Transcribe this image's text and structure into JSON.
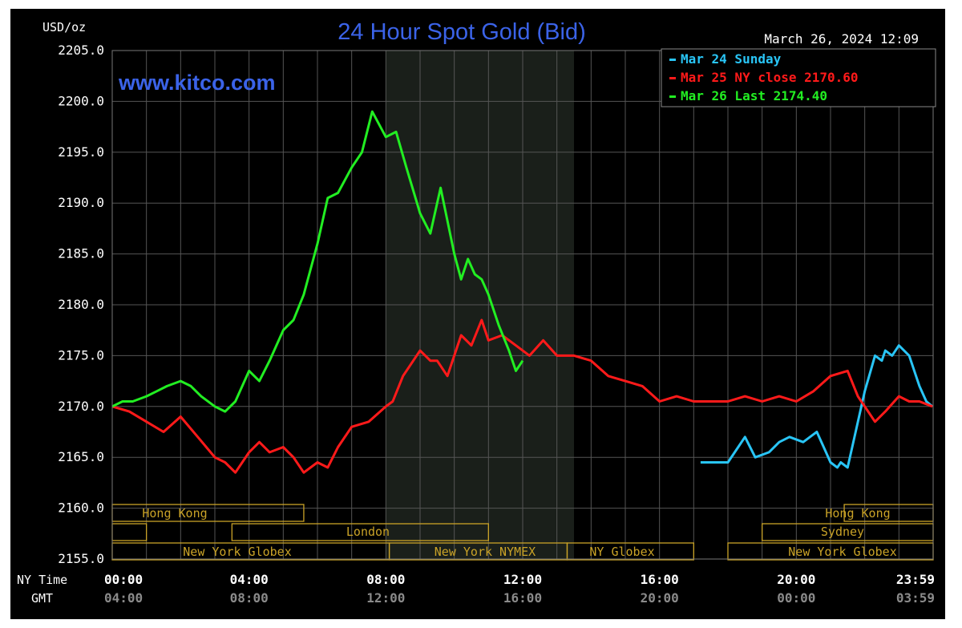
{
  "header": {
    "unit": "USD/oz",
    "title": "24 Hour Spot Gold (Bid)",
    "timestamp": "March 26, 2024 12:09",
    "watermark": "www.kitco.com"
  },
  "legend": [
    {
      "label": "Mar 24 Sunday",
      "color": "#29c5f6"
    },
    {
      "label": "Mar 25 NY close 2170.60",
      "color": "#ff1a1a"
    },
    {
      "label": "Mar 26 Last 2174.40",
      "color": "#22ee22"
    }
  ],
  "colors": {
    "background": "#000000",
    "grid": "#555555",
    "axis_text": "#ffffff",
    "title": "#3b63e8",
    "session_gold": "#c9a227",
    "gmt_text": "#8a8a8a",
    "shaded_region": "#1a1f1a"
  },
  "sessions": {
    "hong_kong_1": "Hong Kong",
    "london": "London",
    "new_york_globex_1": "New York Globex",
    "new_york_nymex": "New York NYMEX",
    "ny_globex": "NY Globex",
    "hong_kong_2": "Hong Kong",
    "sydney": "Sydney",
    "new_york_globex_2": "New York Globex"
  },
  "axis_labels": {
    "ny_time": "NY Time",
    "gmt": "GMT"
  },
  "chart_data": {
    "type": "line",
    "title": "24 Hour Spot Gold (Bid)",
    "ylabel": "USD/oz",
    "ylim": [
      2155.0,
      2205.0
    ],
    "xlim": [
      0,
      24
    ],
    "y_ticks": [
      "2155.0",
      "2160.0",
      "2165.0",
      "2170.0",
      "2175.0",
      "2180.0",
      "2185.0",
      "2190.0",
      "2195.0",
      "2200.0",
      "2205.0"
    ],
    "x_ticks_ny": [
      "00:00",
      "04:00",
      "08:00",
      "12:00",
      "16:00",
      "20:00",
      "23:59"
    ],
    "x_ticks_gmt": [
      "04:00",
      "08:00",
      "12:00",
      "16:00",
      "20:00",
      "00:00",
      "03:59"
    ],
    "grid": true,
    "legend_position": "top-right",
    "nymex_hours": [
      8.0,
      13.5
    ],
    "series": [
      {
        "name": "Mar 24 Sunday",
        "color": "#29c5f6",
        "x": [
          17.2,
          18.0,
          18.3,
          18.5,
          18.8,
          19.2,
          19.5,
          19.8,
          20.2,
          20.4,
          20.6,
          20.8,
          21.0,
          21.2,
          21.3,
          21.5,
          21.7,
          22.0,
          22.3,
          22.5,
          22.6,
          22.8,
          23.0,
          23.3,
          23.6,
          23.8,
          23.98
        ],
        "y": [
          2164.5,
          2164.5,
          2166.0,
          2167.0,
          2165.0,
          2165.5,
          2166.5,
          2167.0,
          2166.5,
          2167.0,
          2167.5,
          2166.0,
          2164.5,
          2164.0,
          2164.5,
          2164.0,
          2167.0,
          2171.5,
          2175.0,
          2174.5,
          2175.5,
          2175.0,
          2176.0,
          2175.0,
          2172.0,
          2170.5,
          2170.0
        ]
      },
      {
        "name": "Mar 25 NY close 2170.60",
        "color": "#ff1a1a",
        "x": [
          0.0,
          0.5,
          1.0,
          1.5,
          2.0,
          2.5,
          3.0,
          3.3,
          3.6,
          4.0,
          4.3,
          4.6,
          5.0,
          5.3,
          5.6,
          6.0,
          6.3,
          6.6,
          7.0,
          7.5,
          8.0,
          8.2,
          8.5,
          9.0,
          9.3,
          9.5,
          9.8,
          10.2,
          10.5,
          10.8,
          11.0,
          11.4,
          11.8,
          12.2,
          12.6,
          13.0,
          13.5,
          14.0,
          14.5,
          15.0,
          15.5,
          16.0,
          16.5,
          17.0,
          17.5,
          18.0,
          18.5,
          19.0,
          19.5,
          20.0,
          20.5,
          21.0,
          21.5,
          21.8,
          22.0,
          22.3,
          22.6,
          23.0,
          23.3,
          23.6,
          23.98
        ],
        "y": [
          2170.0,
          2169.5,
          2168.5,
          2167.5,
          2169.0,
          2167.0,
          2165.0,
          2164.5,
          2163.5,
          2165.5,
          2166.5,
          2165.5,
          2166.0,
          2165.0,
          2163.5,
          2164.5,
          2164.0,
          2166.0,
          2168.0,
          2168.5,
          2170.0,
          2170.5,
          2173.0,
          2175.5,
          2174.5,
          2174.5,
          2173.0,
          2177.0,
          2176.0,
          2178.5,
          2176.5,
          2177.0,
          2176.0,
          2175.0,
          2176.5,
          2175.0,
          2175.0,
          2174.5,
          2173.0,
          2172.5,
          2172.0,
          2170.5,
          2171.0,
          2170.5,
          2170.5,
          2170.5,
          2171.0,
          2170.5,
          2171.0,
          2170.5,
          2171.5,
          2173.0,
          2173.5,
          2171.0,
          2170.0,
          2168.5,
          2169.5,
          2171.0,
          2170.5,
          2170.5,
          2170.0
        ]
      },
      {
        "name": "Mar 26 Last 2174.40",
        "color": "#22ee22",
        "x": [
          0.0,
          0.3,
          0.6,
          1.0,
          1.3,
          1.6,
          2.0,
          2.3,
          2.6,
          3.0,
          3.3,
          3.6,
          4.0,
          4.3,
          4.6,
          5.0,
          5.3,
          5.6,
          6.0,
          6.3,
          6.6,
          7.0,
          7.3,
          7.6,
          8.0,
          8.3,
          8.6,
          9.0,
          9.3,
          9.6,
          10.0,
          10.2,
          10.4,
          10.6,
          10.8,
          11.0,
          11.3,
          11.6,
          11.8,
          12.0
        ],
        "y": [
          2170.0,
          2170.5,
          2170.5,
          2171.0,
          2171.5,
          2172.0,
          2172.5,
          2172.0,
          2171.0,
          2170.0,
          2169.5,
          2170.5,
          2173.5,
          2172.5,
          2174.5,
          2177.5,
          2178.5,
          2181.0,
          2186.0,
          2190.5,
          2191.0,
          2193.5,
          2195.0,
          2199.0,
          2196.5,
          2197.0,
          2193.5,
          2189.0,
          2187.0,
          2191.5,
          2185.0,
          2182.5,
          2184.5,
          2183.0,
          2182.5,
          2181.0,
          2178.0,
          2175.5,
          2173.5,
          2174.5
        ]
      }
    ]
  }
}
